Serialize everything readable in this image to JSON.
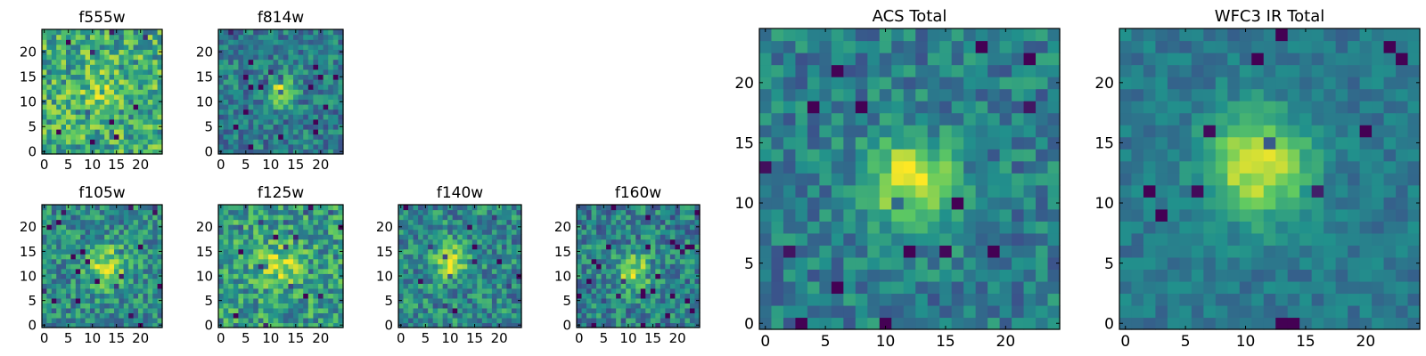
{
  "colormap": [
    "#440154",
    "#3b528b",
    "#21918c",
    "#5ec962",
    "#fde725"
  ],
  "frame_color": "#000000",
  "chart_data": [
    {
      "type": "heatmap",
      "title": "f555w",
      "size": 25,
      "xticks": [
        0,
        5,
        10,
        15,
        20
      ],
      "yticks": [
        0,
        5,
        10,
        15,
        20
      ],
      "peak": [
        12,
        12
      ],
      "signal": 0.15,
      "sigma": 3,
      "noise": 0.55,
      "base": 0.62,
      "seed": 11,
      "blocks": 1
    },
    {
      "type": "heatmap",
      "title": "f814w",
      "size": 25,
      "xticks": [
        0,
        5,
        10,
        15,
        20
      ],
      "yticks": [
        0,
        5,
        10,
        15,
        20
      ],
      "peak": [
        12,
        12
      ],
      "signal": 0.45,
      "sigma": 2,
      "noise": 0.4,
      "base": 0.42,
      "seed": 23,
      "blocks": 1
    },
    {
      "type": "heatmap",
      "title": "f105w",
      "size": 25,
      "xticks": [
        0,
        5,
        10,
        15,
        20
      ],
      "yticks": [
        0,
        5,
        10,
        15,
        20
      ],
      "peak": [
        13,
        12
      ],
      "signal": 0.4,
      "sigma": 3,
      "noise": 0.45,
      "base": 0.48,
      "seed": 37,
      "blocks": 1
    },
    {
      "type": "heatmap",
      "title": "f125w",
      "size": 25,
      "xticks": [
        0,
        5,
        10,
        15,
        20
      ],
      "yticks": [
        0,
        5,
        10,
        15,
        20
      ],
      "peak": [
        12,
        12
      ],
      "signal": 0.3,
      "sigma": 3,
      "noise": 0.5,
      "base": 0.55,
      "seed": 41,
      "blocks": 1
    },
    {
      "type": "heatmap",
      "title": "f140w",
      "size": 25,
      "xticks": [
        0,
        5,
        10,
        15,
        20
      ],
      "yticks": [
        0,
        5,
        10,
        15,
        20
      ],
      "peak": [
        10,
        13
      ],
      "signal": 0.42,
      "sigma": 2.5,
      "noise": 0.45,
      "base": 0.47,
      "seed": 53,
      "blocks": 1
    },
    {
      "type": "heatmap",
      "title": "f160w",
      "size": 25,
      "xticks": [
        0,
        5,
        10,
        15,
        20
      ],
      "yticks": [
        0,
        5,
        10,
        15,
        20
      ],
      "peak": [
        11,
        11
      ],
      "signal": 0.42,
      "sigma": 2.5,
      "noise": 0.45,
      "base": 0.44,
      "seed": 67,
      "blocks": 1
    },
    {
      "type": "heatmap",
      "title": "ACS Total",
      "size": 25,
      "xticks": [
        0,
        5,
        10,
        15,
        20
      ],
      "yticks": [
        0,
        5,
        10,
        15,
        20
      ],
      "peak": [
        12,
        12
      ],
      "signal": 0.55,
      "sigma": 2.5,
      "noise": 0.35,
      "base": 0.42,
      "seed": 79,
      "blocks": 1
    },
    {
      "type": "heatmap",
      "title": "WFC3 IR Total",
      "size": 25,
      "xticks": [
        0,
        5,
        10,
        15,
        20
      ],
      "yticks": [
        0,
        5,
        10,
        15,
        20
      ],
      "peak": [
        11,
        13
      ],
      "signal": 0.55,
      "sigma": 3,
      "noise": 0.2,
      "base": 0.4,
      "seed": 97,
      "blocks": 1
    }
  ]
}
